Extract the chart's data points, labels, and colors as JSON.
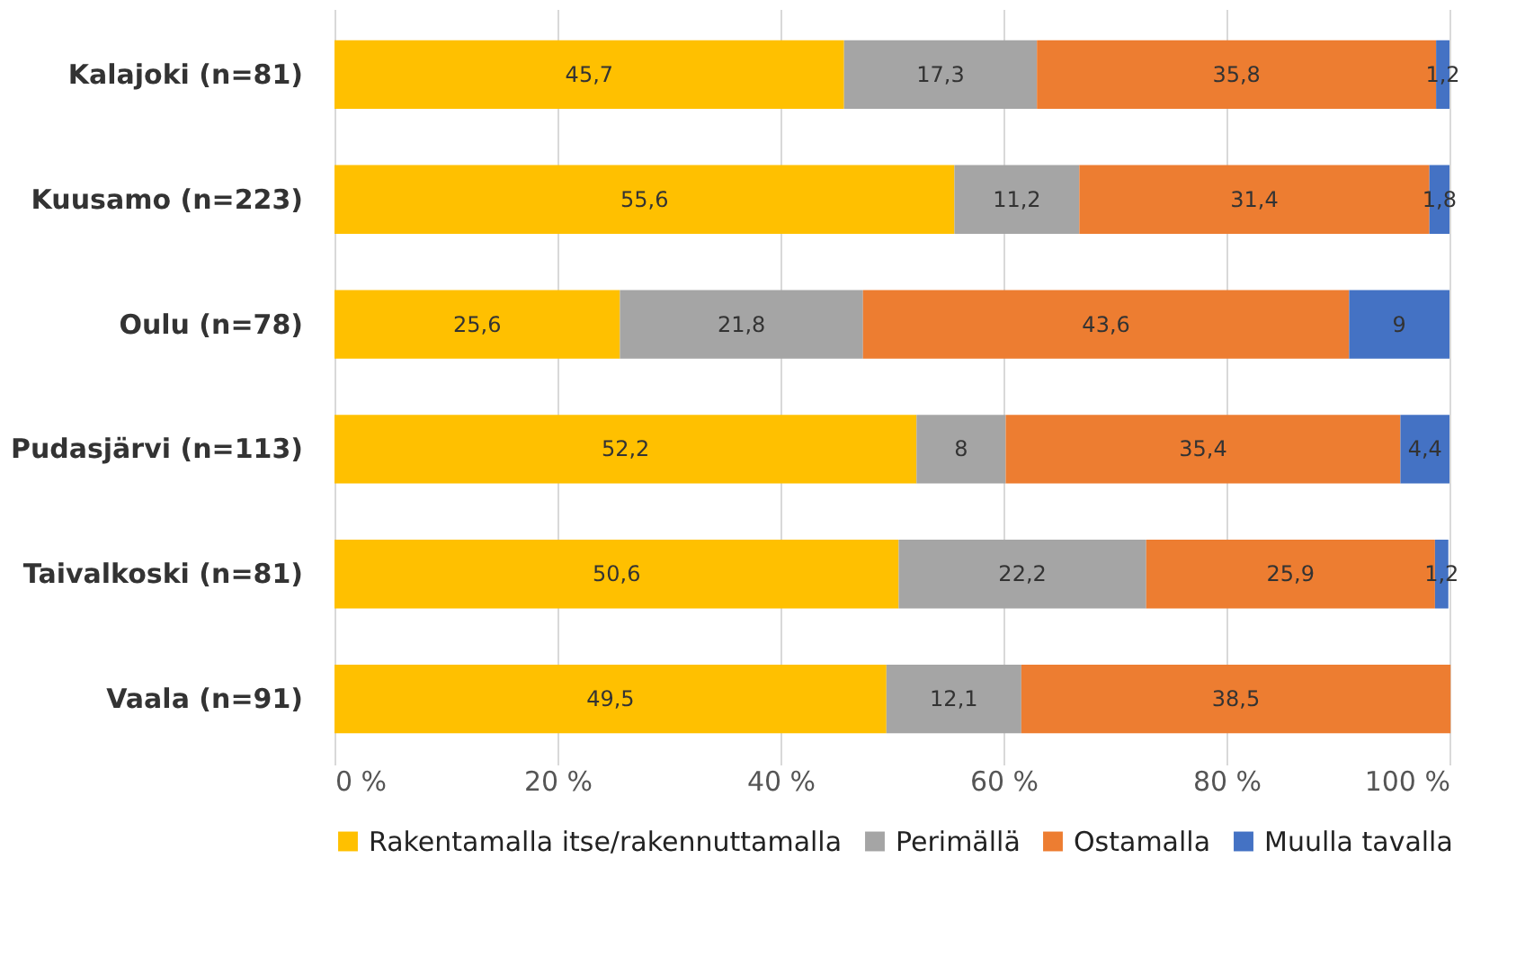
{
  "chart_data": {
    "type": "bar",
    "orientation": "horizontal",
    "stacked": true,
    "grid": "x",
    "legend": "bottom",
    "categories": [
      "Kalajoki (n=81)",
      "Kuusamo (n=223)",
      "Oulu (n=78)",
      "Pudasjärvi (n=113)",
      "Taivalkoski (n=81)",
      "Vaala (n=91)"
    ],
    "xlim": [
      0,
      100
    ],
    "xticks": [
      {
        "value": 0,
        "label": "0 %"
      },
      {
        "value": 20,
        "label": "20 %"
      },
      {
        "value": 40,
        "label": "40 %"
      },
      {
        "value": 60,
        "label": "60 %"
      },
      {
        "value": 80,
        "label": "80 %"
      },
      {
        "value": 100,
        "label": "100 %"
      }
    ],
    "series": [
      {
        "name": "Rakentamalla itse/rakennuttamalla",
        "color": "#ffc000",
        "values": [
          45.7,
          55.6,
          25.6,
          52.2,
          50.6,
          49.5
        ],
        "value_labels": [
          "45,7",
          "55,6",
          "25,6",
          "52,2",
          "50,6",
          "49,5"
        ]
      },
      {
        "name": "Perimällä",
        "color": "#a5a5a5",
        "values": [
          17.3,
          11.2,
          21.8,
          8,
          22.2,
          12.1
        ],
        "value_labels": [
          "17,3",
          "11,2",
          "21,8",
          "8",
          "22,2",
          "12,1"
        ]
      },
      {
        "name": "Ostamalla",
        "color": "#ed7d31",
        "values": [
          35.8,
          31.4,
          43.6,
          35.4,
          25.9,
          38.5
        ],
        "value_labels": [
          "35,8",
          "31,4",
          "43,6",
          "35,4",
          "25,9",
          "38,5"
        ]
      },
      {
        "name": "Muulla tavalla",
        "color": "#4472c4",
        "values": [
          1.2,
          1.8,
          9,
          4.4,
          1.2,
          null
        ],
        "value_labels": [
          "1,2",
          "1,8",
          "9",
          "4,4",
          "1,2",
          null
        ]
      }
    ]
  }
}
